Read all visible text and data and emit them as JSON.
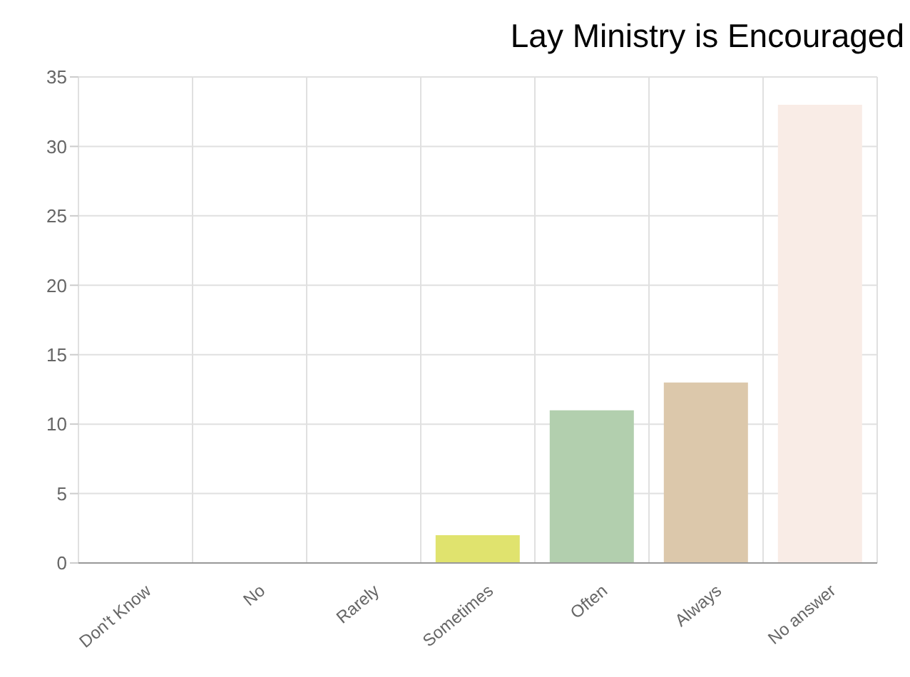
{
  "chart_data": {
    "type": "bar",
    "title": "Lay Ministry is Encouraged",
    "categories": [
      "Don't Know",
      "No",
      "Rarely",
      "Sometimes",
      "Often",
      "Always",
      "No answer"
    ],
    "values": [
      0,
      0,
      0,
      2,
      11,
      13,
      33
    ],
    "colors": [
      "#e8b0b8",
      "#a8c8e8",
      "#f0c890",
      "#e0e36e",
      "#b2cfae",
      "#dcc8ab",
      "#f9ece6"
    ],
    "ylim": [
      0,
      35
    ],
    "yticks": [
      0,
      5,
      10,
      15,
      20,
      25,
      30,
      35
    ],
    "grid": true
  }
}
